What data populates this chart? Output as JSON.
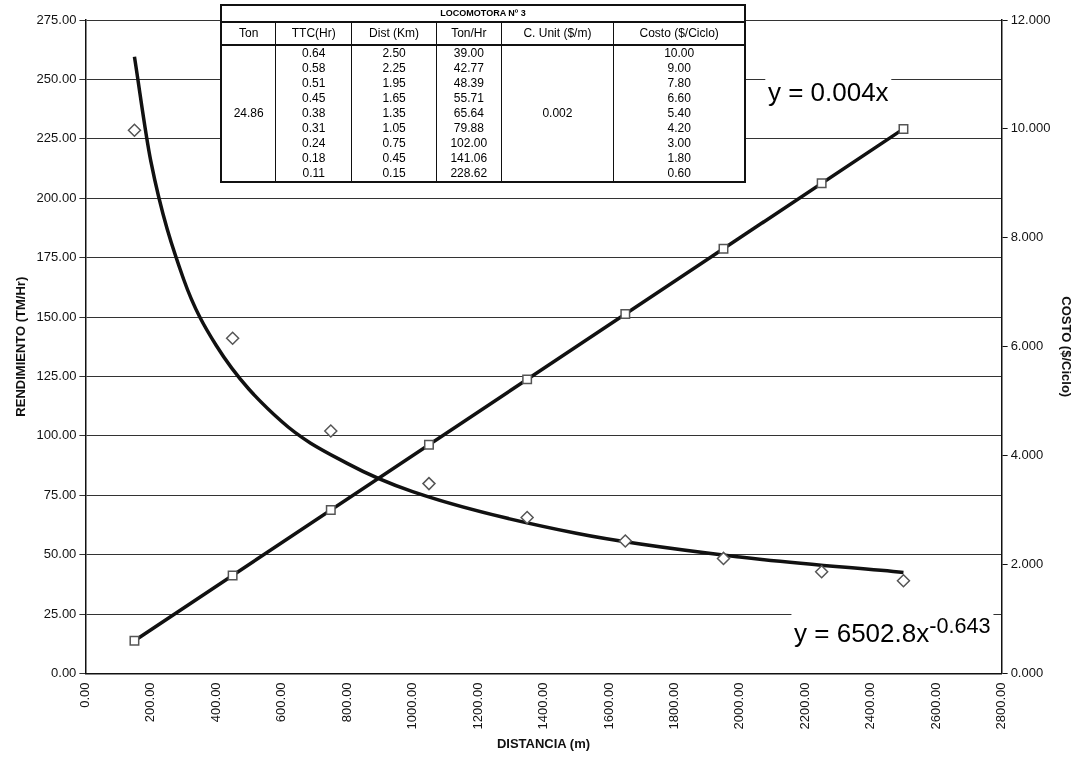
{
  "chart_data": {
    "type": "scatter",
    "title": "LOCOMOTORA Nº 3",
    "xlabel": "DISTANCIA (m)",
    "ylabel": "RENDIMIENTO (TM/Hr)",
    "y2label": "COSTO ($/Ciclo)",
    "series": [
      {
        "type": "scatter",
        "color": "#555555",
        "marker": "diamond",
        "x": [
          150,
          450,
          750,
          1050,
          1350,
          1650,
          1950,
          2250,
          2500
        ],
        "values": [
          228.62,
          141.06,
          102.0,
          79.88,
          65.64,
          55.71,
          48.39,
          42.77,
          39.0
        ]
      },
      {
        "type": "scatter",
        "axis": "y2",
        "color": "#555555",
        "marker": "square",
        "x": [
          150,
          450,
          750,
          1050,
          1350,
          1650,
          1950,
          2250,
          2500
        ],
        "values": [
          0.6,
          1.8,
          3.0,
          4.2,
          5.4,
          6.6,
          7.8,
          9.0,
          10.0
        ]
      },
      {
        "type": "line",
        "color": "#111111",
        "marker": "none",
        "x": [
          150,
          200,
          300,
          400,
          600,
          800,
          1000,
          1500,
          2000,
          2500
        ],
        "values": [
          259.5,
          215.6,
          166,
          138,
          106,
          88.4,
          76.5,
          59.0,
          49.0,
          42.5
        ]
      },
      {
        "type": "line",
        "axis": "y2",
        "color": "#111111",
        "marker": "none",
        "x": [
          150,
          2500
        ],
        "values": [
          0.6,
          10.0
        ]
      }
    ],
    "xlim": [
      0,
      2800
    ],
    "xticks": [
      {
        "value": 0,
        "label": "0.00"
      },
      {
        "value": 200,
        "label": "200.00"
      },
      {
        "value": 400,
        "label": "400.00"
      },
      {
        "value": 600,
        "label": "600.00"
      },
      {
        "value": 800,
        "label": "800.00"
      },
      {
        "value": 1000,
        "label": "1000.00"
      },
      {
        "value": 1200,
        "label": "1200.00"
      },
      {
        "value": 1400,
        "label": "1400.00"
      },
      {
        "value": 1600,
        "label": "1600.00"
      },
      {
        "value": 1800,
        "label": "1800.00"
      },
      {
        "value": 2000,
        "label": "2000.00"
      },
      {
        "value": 2200,
        "label": "2200.00"
      },
      {
        "value": 2400,
        "label": "2400.00"
      },
      {
        "value": 2600,
        "label": "2600.00"
      },
      {
        "value": 2800,
        "label": "2800.00"
      }
    ],
    "ylim": [
      0,
      275
    ],
    "yticks": [
      {
        "value": 0,
        "label": "0.00"
      },
      {
        "value": 25,
        "label": "25.00"
      },
      {
        "value": 50,
        "label": "50.00"
      },
      {
        "value": 75,
        "label": "75.00"
      },
      {
        "value": 100,
        "label": "100.00"
      },
      {
        "value": 125,
        "label": "125.00"
      },
      {
        "value": 150,
        "label": "150.00"
      },
      {
        "value": 175,
        "label": "175.00"
      },
      {
        "value": 200,
        "label": "200.00"
      },
      {
        "value": 225,
        "label": "225.00"
      },
      {
        "value": 250,
        "label": "250.00"
      },
      {
        "value": 275,
        "label": "275.00"
      }
    ],
    "y2lim": [
      0,
      12
    ],
    "y2ticks": [
      {
        "value": 0,
        "label": "0.000"
      },
      {
        "value": 2,
        "label": "2.000"
      },
      {
        "value": 4,
        "label": "4.000"
      },
      {
        "value": 6,
        "label": "6.000"
      },
      {
        "value": 8,
        "label": "8.000"
      },
      {
        "value": 10,
        "label": "10.000"
      },
      {
        "value": 12,
        "label": "12.000"
      }
    ],
    "grid": "y",
    "legend": false,
    "annotations": [
      "Ton",
      "TTC(Hr)",
      "Dist (Km)",
      "Ton/Hr",
      "C. Unit ($/m)",
      "Costo ($/Ciclo)",
      "24.86",
      "0.002",
      "0.64",
      "2.50",
      "39.00",
      "10.00",
      "0.58",
      "2.25",
      "42.77",
      "9.00",
      "0.51",
      "1.95",
      "48.39",
      "7.80",
      "0.45",
      "1.65",
      "55.71",
      "6.60",
      "0.38",
      "1.35",
      "65.64",
      "5.40",
      "0.31",
      "1.05",
      "79.88",
      "4.20",
      "0.24",
      "0.75",
      "102.00",
      "3.00",
      "0.18",
      "0.45",
      "141.06",
      "1.80",
      "0.11",
      "0.15",
      "228.62",
      "0.60",
      "y = 0.004x",
      "y = 6502.8x$^{-0.643}$"
    ]
  }
}
